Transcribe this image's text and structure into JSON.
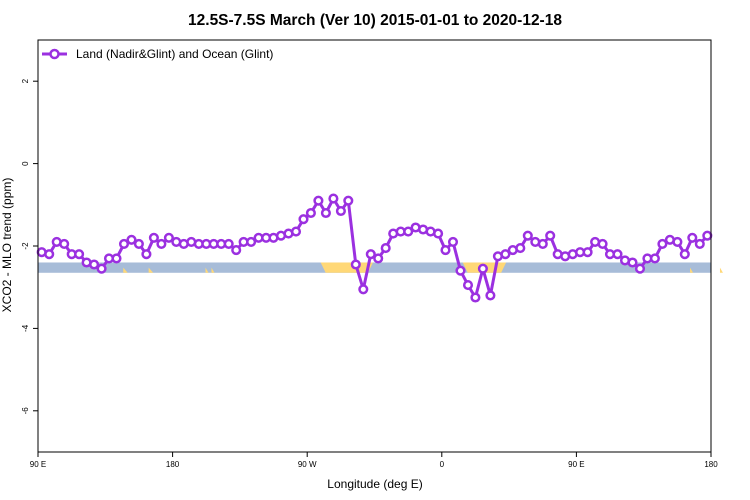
{
  "chart_data": {
    "type": "line",
    "title": "12.5S-7.5S March (Ver 10)   2015-01-01 to 2020-12-18",
    "xlabel": "Longitude (deg E)",
    "ylabel": "XCO2 - MLO trend (ppm)",
    "x_ticks": [
      {
        "value": 90,
        "label": "90 E"
      },
      {
        "value": 180,
        "label": "180"
      },
      {
        "value": 270,
        "label": "90 W"
      },
      {
        "value": 360,
        "label": "0"
      },
      {
        "value": 450,
        "label": "90 E"
      },
      {
        "value": 540,
        "label": "180"
      }
    ],
    "y_ticks": [
      2,
      0,
      -2,
      -4,
      -6
    ],
    "xlim": [
      90,
      540
    ],
    "ylim": [
      -7,
      3
    ],
    "grid": false,
    "legend": {
      "position": "top-left"
    },
    "colors": {
      "series": "#9b30e0",
      "ocean_band": "#a7bcd8",
      "land_band": "#ffd877",
      "axis": "#000000"
    },
    "band": {
      "y_top": -2.4,
      "y_bottom": -2.65
    },
    "land_segments": [
      [
        279,
        314
      ],
      [
        374,
        403
      ]
    ],
    "land_slivers": [
      [
        147,
        150
      ],
      [
        164,
        167
      ],
      [
        202,
        204
      ],
      [
        206,
        208
      ],
      [
        491,
        494
      ],
      [
        526,
        528
      ],
      [
        546,
        548
      ]
    ],
    "series": [
      {
        "name": "Land (Nadir&Glint) and Ocean (Glint)",
        "x": [
          92.5,
          97.5,
          102.5,
          107.5,
          112.5,
          117.5,
          122.5,
          127.5,
          132.5,
          137.5,
          142.5,
          147.5,
          152.5,
          157.5,
          162.5,
          167.5,
          172.5,
          177.5,
          182.5,
          187.5,
          192.5,
          197.5,
          202.5,
          207.5,
          212.5,
          217.5,
          222.5,
          227.5,
          232.5,
          237.5,
          242.5,
          247.5,
          252.5,
          257.5,
          262.5,
          267.5,
          272.5,
          277.5,
          282.5,
          287.5,
          292.5,
          297.5,
          302.5,
          307.5,
          312.5,
          317.5,
          322.5,
          327.5,
          332.5,
          337.5,
          342.5,
          347.5,
          352.5,
          357.5,
          362.5,
          367.5,
          372.5,
          377.5,
          382.5,
          387.5,
          392.5,
          397.5,
          402.5,
          407.5,
          412.5,
          417.5,
          422.5,
          427.5,
          432.5,
          437.5,
          442.5,
          447.5,
          452.5,
          457.5,
          462.5,
          467.5,
          472.5,
          477.5,
          482.5,
          487.5,
          492.5,
          497.5,
          502.5,
          507.5,
          512.5,
          517.5,
          522.5,
          527.5,
          532.5,
          537.5
        ],
        "values": [
          -2.15,
          -2.2,
          -1.9,
          -1.95,
          -2.2,
          -2.2,
          -2.4,
          -2.45,
          -2.55,
          -2.3,
          -2.3,
          -1.95,
          -1.85,
          -1.95,
          -2.2,
          -1.8,
          -1.95,
          -1.8,
          -1.9,
          -1.95,
          -1.9,
          -1.95,
          -1.95,
          -1.95,
          -1.95,
          -1.95,
          -2.1,
          -1.9,
          -1.9,
          -1.8,
          -1.8,
          -1.8,
          -1.75,
          -1.7,
          -1.65,
          -1.35,
          -1.2,
          -0.9,
          -1.2,
          -0.85,
          -1.15,
          -0.9,
          -2.45,
          -3.05,
          -2.2,
          -2.3,
          -2.05,
          -1.7,
          -1.65,
          -1.65,
          -1.55,
          -1.6,
          -1.65,
          -1.7,
          -2.1,
          -1.9,
          -2.6,
          -2.95,
          -3.25,
          -2.55,
          -3.2,
          -2.25,
          -2.2,
          -2.1,
          -2.05,
          -1.75,
          -1.9,
          -1.95,
          -1.75,
          -2.2,
          -2.25,
          -2.2,
          -2.15,
          -2.15,
          -1.9,
          -1.95,
          -2.2,
          -2.2,
          -2.35,
          -2.4,
          -2.55,
          -2.3,
          -2.3,
          -1.95,
          -1.85,
          -1.9,
          -2.2,
          -1.8,
          -1.95,
          -1.75
        ]
      }
    ]
  }
}
